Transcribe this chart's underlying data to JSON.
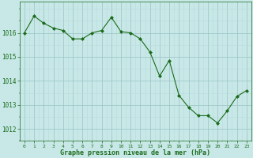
{
  "x": [
    0,
    1,
    2,
    3,
    4,
    5,
    6,
    7,
    8,
    9,
    10,
    11,
    12,
    13,
    14,
    15,
    16,
    17,
    18,
    19,
    20,
    21,
    22,
    23
  ],
  "y": [
    1016.0,
    1016.7,
    1016.4,
    1016.2,
    1016.1,
    1015.75,
    1015.75,
    1016.0,
    1016.1,
    1016.65,
    1016.05,
    1016.0,
    1015.75,
    1015.2,
    1014.2,
    1014.85,
    1013.4,
    1012.9,
    1012.55,
    1012.55,
    1012.25,
    1012.75,
    1013.35,
    1013.6
  ],
  "line_color": "#1a6b1a",
  "marker": "D",
  "marker_size": 2,
  "bg_color": "#c8e8e8",
  "grid_color_major": "#a0c8c8",
  "grid_color_minor": "#b8dada",
  "xlabel": "Graphe pression niveau de la mer (hPa)",
  "xlabel_color": "#1a6b1a",
  "tick_color": "#1a6b1a",
  "ylim": [
    1011.5,
    1017.3
  ],
  "yticks": [
    1012,
    1013,
    1014,
    1015,
    1016
  ],
  "xticks": [
    0,
    1,
    2,
    3,
    4,
    5,
    6,
    7,
    8,
    9,
    10,
    11,
    12,
    13,
    14,
    15,
    16,
    17,
    18,
    19,
    20,
    21,
    22,
    23
  ]
}
